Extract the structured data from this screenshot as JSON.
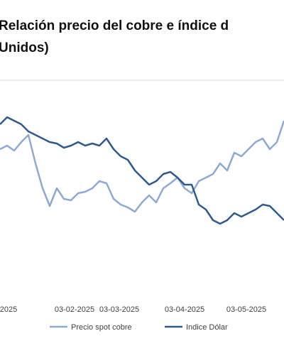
{
  "chart_data": {
    "type": "line",
    "title": [
      "Relación precio del cobre e índice d",
      "Unidos)"
    ],
    "x": [
      0,
      10,
      20,
      30,
      40,
      50,
      60,
      70,
      80,
      90,
      100,
      110,
      120,
      130,
      140,
      150,
      160,
      170,
      180,
      190,
      200,
      210,
      220,
      230,
      240,
      250,
      260,
      270,
      280,
      290,
      300,
      310,
      320,
      330,
      340,
      350,
      360,
      370,
      380,
      390,
      400
    ],
    "xlim": [
      0,
      400
    ],
    "xticks": [
      {
        "value": 12,
        "label": "2025"
      },
      {
        "value": 105,
        "label": "03-02-2025"
      },
      {
        "value": 168,
        "label": "03-03-2025"
      },
      {
        "value": 260,
        "label": "03-04-2025"
      },
      {
        "value": 347,
        "label": "03-05-2025"
      }
    ],
    "ylim": [
      0,
      290
    ],
    "series": [
      {
        "name": "Precio spot cobre",
        "color": "#8eaad2",
        "values": [
          190,
          195,
          188,
          200,
          210,
          170,
          135,
          110,
          135,
          120,
          118,
          128,
          130,
          135,
          145,
          142,
          120,
          112,
          108,
          102,
          115,
          125,
          115,
          135,
          142,
          150,
          135,
          128,
          145,
          150,
          155,
          170,
          160,
          185,
          180,
          190,
          200,
          205,
          190,
          200,
          230
        ]
      },
      {
        "name": "Indice Dólar",
        "color": "#2e5a8c",
        "values": [
          225,
          235,
          230,
          225,
          215,
          210,
          205,
          200,
          198,
          192,
          195,
          200,
          195,
          198,
          195,
          205,
          190,
          180,
          175,
          160,
          150,
          140,
          145,
          155,
          158,
          150,
          140,
          140,
          112,
          105,
          90,
          85,
          90,
          100,
          95,
          100,
          105,
          112,
          110,
          100,
          90
        ]
      }
    ]
  }
}
